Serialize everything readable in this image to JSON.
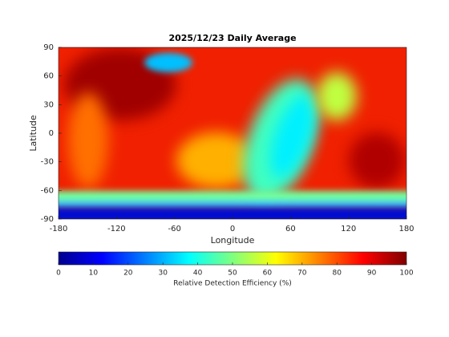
{
  "chart_data": {
    "type": "heatmap",
    "title": "2025/12/23 Daily Average",
    "x_label": "Longitude",
    "y_label": "Latitude",
    "xlim": [
      -180,
      180
    ],
    "xticks": [
      -180,
      -120,
      -60,
      0,
      60,
      120,
      180
    ],
    "ylim": [
      -90,
      90
    ],
    "yticks": [
      -90,
      -60,
      -30,
      0,
      30,
      60,
      90
    ],
    "colorbar": {
      "label": "Relative Detection Efficiency (%)",
      "lim": [
        0,
        100
      ],
      "ticks": [
        0,
        10,
        20,
        30,
        40,
        50,
        60,
        70,
        80,
        90,
        100
      ]
    }
  }
}
